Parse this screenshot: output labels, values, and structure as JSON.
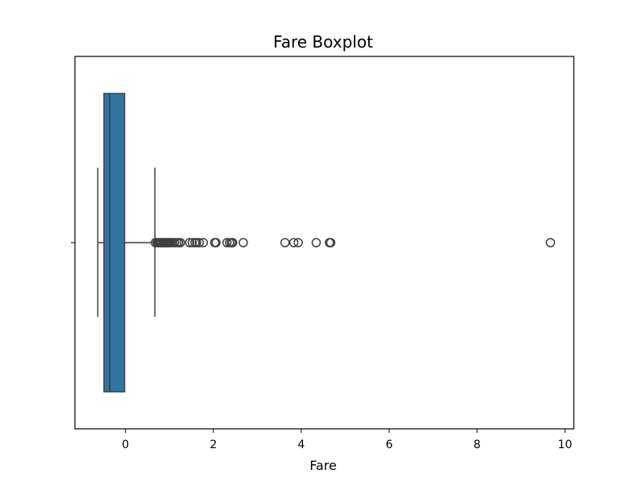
{
  "chart_data": {
    "type": "boxplot",
    "title": "Fare Boxplot",
    "xlabel": "Fare",
    "ylabel": "",
    "orientation": "horizontal",
    "xlim": [
      -1.15,
      10.2
    ],
    "xticks": [
      0,
      2,
      4,
      6,
      8,
      10
    ],
    "xtick_labels": [
      "0",
      "2",
      "4",
      "6",
      "8",
      "10"
    ],
    "grid": false,
    "legend": "none",
    "box": {
      "whisker_low": -0.63,
      "q1": -0.49,
      "median": -0.36,
      "q3": -0.02,
      "whisker_high": 0.67,
      "color": "#3274a1",
      "line_color": "#3f3f3f"
    },
    "outliers": [
      0.68,
      0.72,
      0.75,
      0.78,
      0.8,
      0.83,
      0.86,
      0.88,
      0.9,
      0.93,
      0.96,
      0.98,
      1.0,
      1.04,
      1.08,
      1.12,
      1.17,
      1.21,
      1.25,
      1.46,
      1.52,
      1.58,
      1.62,
      1.68,
      1.77,
      2.03,
      2.06,
      2.31,
      2.37,
      2.41,
      2.44,
      2.68,
      3.63,
      3.83,
      3.93,
      4.34,
      4.64,
      4.67,
      9.67
    ]
  }
}
